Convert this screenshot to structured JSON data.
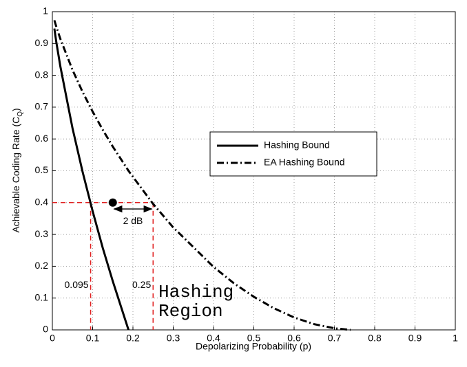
{
  "chart_data": {
    "type": "line",
    "xlabel": "Depolarizing Probability (p)",
    "ylabel": [
      "Achievable Coding Rate (C",
      "Q",
      ")"
    ],
    "x": [
      0.005,
      0.01,
      0.02,
      0.05,
      0.075,
      0.1,
      0.125,
      0.15,
      0.189,
      0.2,
      0.25,
      0.3,
      0.4,
      0.45,
      0.5,
      0.55,
      0.6,
      0.65,
      0.7,
      0.74
    ],
    "series": [
      {
        "name": "Hashing Bound",
        "color": "#000000",
        "linestyle": "solid",
        "values": [
          0.947,
          0.903,
          0.827,
          0.634,
          0.497,
          0.373,
          0.258,
          0.153,
          0,
          null,
          null,
          null,
          null,
          null,
          null,
          null,
          null,
          null,
          null,
          null
        ]
      },
      {
        "name": "EA Hashing Bound",
        "color": "#000000",
        "linestyle": "dashdot",
        "values": [
          0.973,
          0.952,
          0.914,
          0.817,
          0.748,
          0.686,
          0.629,
          0.576,
          0.5,
          0.481,
          0.396,
          0.322,
          0.198,
          0.147,
          0.104,
          0.068,
          0.039,
          0.018,
          0.005,
          0
        ]
      }
    ],
    "xlim": [
      0,
      1
    ],
    "ylim": [
      0,
      1
    ],
    "xticks": [
      0,
      0.1,
      0.2,
      0.3,
      0.4,
      0.5,
      0.6,
      0.7,
      0.8,
      0.9,
      1
    ],
    "yticks": [
      0,
      0.1,
      0.2,
      0.3,
      0.4,
      0.5,
      0.6,
      0.7,
      0.8,
      0.9,
      1
    ],
    "grid": true,
    "reference_lines": [
      {
        "x": 0.095,
        "y": 0.4,
        "label": "0.095",
        "color": "#e02020"
      },
      {
        "x": 0.25,
        "y": 0.4,
        "label": "0.25",
        "color": "#e02020"
      }
    ],
    "point": {
      "x": 0.15,
      "y": 0.4
    },
    "arrow": {
      "x": [
        0.15,
        0.25
      ],
      "y": 0.38,
      "label": "2 dB"
    },
    "region_label": [
      "Hashing",
      "Region"
    ]
  }
}
